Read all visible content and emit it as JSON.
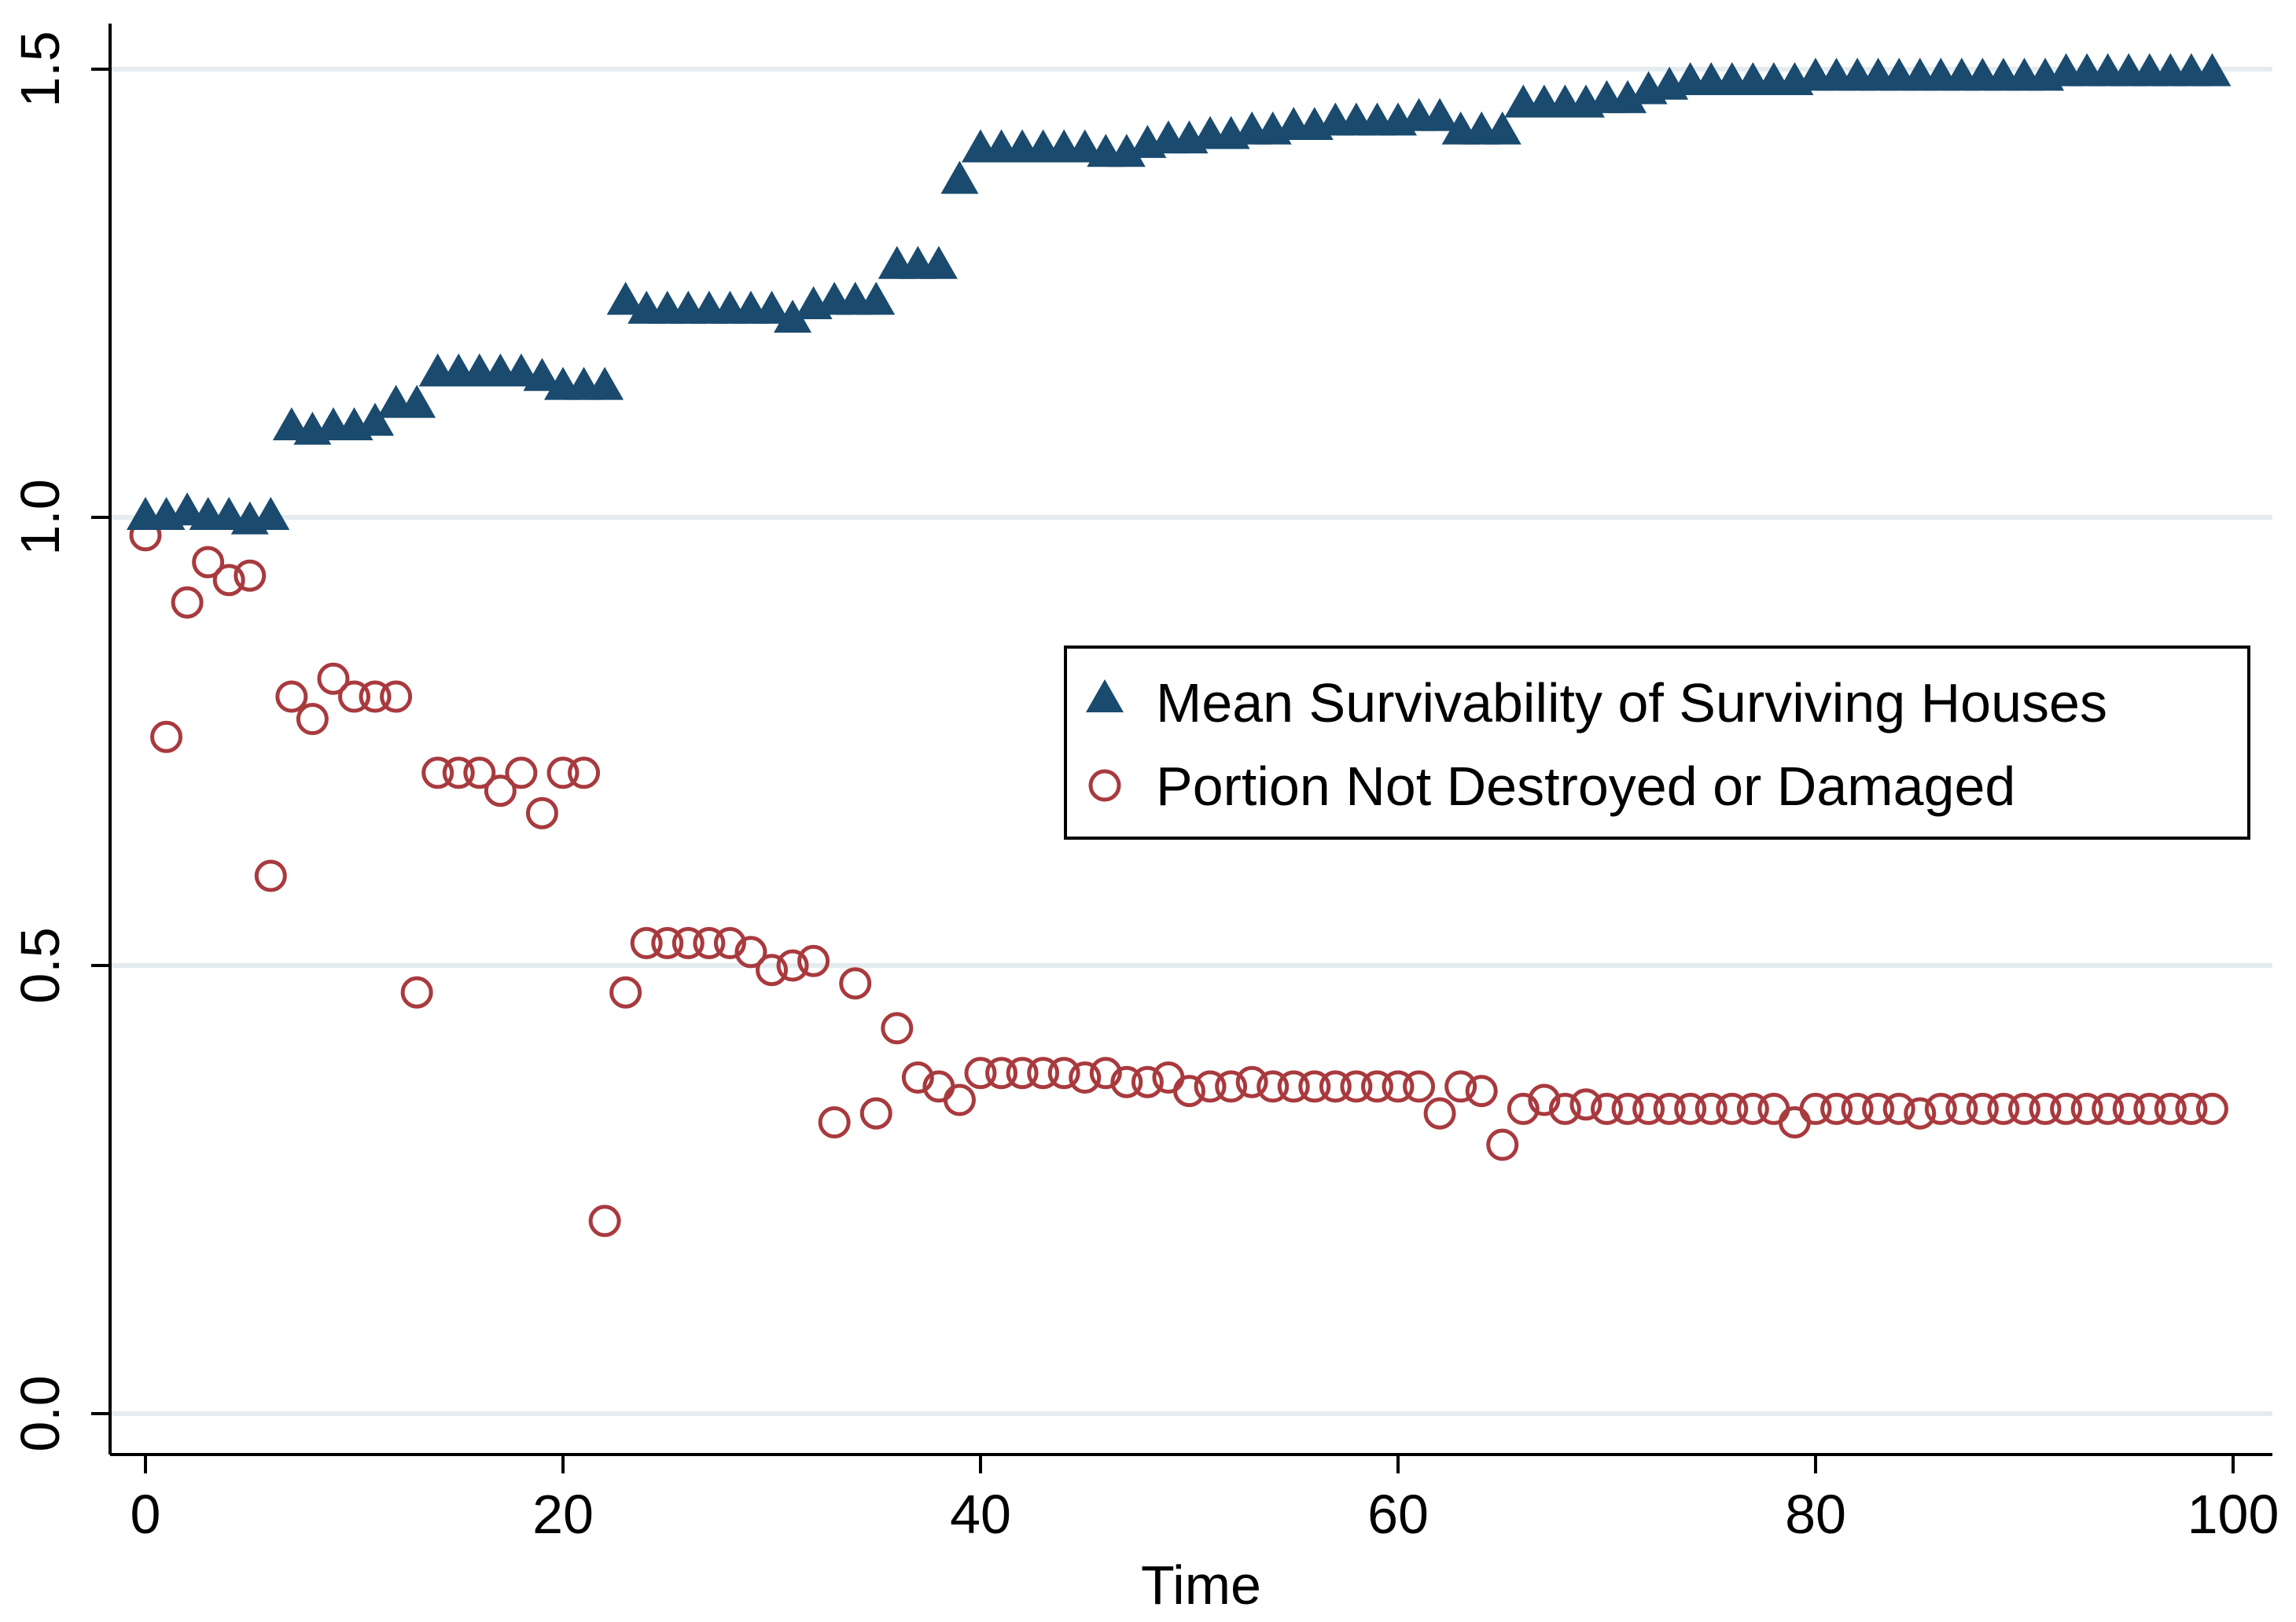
{
  "chart_data": {
    "type": "scatter",
    "xlabel": "Time",
    "ylabel": "",
    "xlim": [
      0,
      100
    ],
    "ylim": [
      0,
      1.5
    ],
    "x_ticks": [
      0,
      20,
      40,
      60,
      80,
      100
    ],
    "y_ticks": [
      0,
      0.5,
      1,
      1.5
    ],
    "x_tick_labels": [
      "0",
      "20",
      "40",
      "60",
      "80",
      "100"
    ],
    "y_tick_labels": [
      "0.0",
      "0.5",
      "1.0",
      "1.5"
    ],
    "grid": "horizontal",
    "legend_position": "right",
    "colors": {
      "triangle": "#1a4a6e",
      "circle": "#a83a3e",
      "grid": "#e4ecf0",
      "axis": "#000000"
    },
    "series": [
      {
        "name": "Mean Survivability of Surviving Houses",
        "marker": "triangle",
        "x": [
          0,
          1,
          2,
          3,
          4,
          5,
          6,
          7,
          8,
          9,
          10,
          11,
          12,
          13,
          14,
          15,
          16,
          17,
          18,
          19,
          20,
          21,
          22,
          23,
          24,
          25,
          26,
          27,
          28,
          29,
          30,
          31,
          32,
          33,
          34,
          35,
          36,
          37,
          38,
          39,
          40,
          41,
          42,
          43,
          44,
          45,
          46,
          47,
          48,
          49,
          50,
          51,
          52,
          53,
          54,
          55,
          56,
          57,
          58,
          59,
          60,
          61,
          62,
          63,
          64,
          65,
          66,
          67,
          68,
          69,
          70,
          71,
          72,
          73,
          74,
          75,
          76,
          77,
          78,
          79,
          80,
          81,
          82,
          83,
          84,
          85,
          86,
          87,
          88,
          89,
          90,
          91,
          92,
          93,
          94,
          95,
          96,
          97,
          98,
          99
        ],
        "y": [
          1.0,
          1.0,
          1.005,
          1.0,
          1.0,
          0.995,
          1.0,
          1.1,
          1.095,
          1.1,
          1.1,
          1.105,
          1.125,
          1.125,
          1.16,
          1.16,
          1.16,
          1.16,
          1.16,
          1.155,
          1.145,
          1.145,
          1.145,
          1.24,
          1.23,
          1.23,
          1.23,
          1.23,
          1.23,
          1.23,
          1.23,
          1.22,
          1.235,
          1.24,
          1.24,
          1.24,
          1.28,
          1.28,
          1.28,
          1.375,
          1.41,
          1.41,
          1.41,
          1.41,
          1.41,
          1.41,
          1.405,
          1.405,
          1.415,
          1.42,
          1.42,
          1.425,
          1.425,
          1.43,
          1.43,
          1.435,
          1.435,
          1.44,
          1.44,
          1.44,
          1.44,
          1.445,
          1.445,
          1.43,
          1.43,
          1.43,
          1.46,
          1.46,
          1.46,
          1.46,
          1.465,
          1.465,
          1.475,
          1.48,
          1.485,
          1.485,
          1.485,
          1.485,
          1.485,
          1.485,
          1.49,
          1.49,
          1.49,
          1.49,
          1.49,
          1.49,
          1.49,
          1.49,
          1.49,
          1.49,
          1.49,
          1.49,
          1.495,
          1.495,
          1.495,
          1.495,
          1.495,
          1.495,
          1.495,
          1.495
        ]
      },
      {
        "name": "Portion Not Destroyed or Damaged",
        "marker": "circle",
        "x": [
          0,
          1,
          2,
          3,
          4,
          5,
          6,
          7,
          8,
          9,
          10,
          11,
          12,
          13,
          14,
          15,
          16,
          17,
          18,
          19,
          20,
          21,
          22,
          23,
          24,
          25,
          26,
          27,
          28,
          29,
          30,
          31,
          32,
          33,
          34,
          35,
          36,
          37,
          38,
          39,
          40,
          41,
          42,
          43,
          44,
          45,
          46,
          47,
          48,
          49,
          50,
          51,
          52,
          53,
          54,
          55,
          56,
          57,
          58,
          59,
          60,
          61,
          62,
          63,
          64,
          65,
          66,
          67,
          68,
          69,
          70,
          71,
          72,
          73,
          74,
          75,
          76,
          77,
          78,
          79,
          80,
          81,
          82,
          83,
          84,
          85,
          86,
          87,
          88,
          89,
          90,
          91,
          92,
          93,
          94,
          95,
          96,
          97,
          98,
          99
        ],
        "y": [
          0.98,
          0.755,
          0.905,
          0.95,
          0.93,
          0.935,
          0.6,
          0.8,
          0.775,
          0.82,
          0.8,
          0.8,
          0.8,
          0.47,
          0.715,
          0.715,
          0.715,
          0.695,
          0.715,
          0.67,
          0.715,
          0.715,
          0.215,
          0.47,
          0.525,
          0.525,
          0.525,
          0.525,
          0.525,
          0.515,
          0.495,
          0.5,
          0.505,
          0.325,
          0.48,
          0.335,
          0.43,
          0.375,
          0.365,
          0.35,
          0.38,
          0.38,
          0.38,
          0.38,
          0.38,
          0.375,
          0.38,
          0.37,
          0.37,
          0.375,
          0.36,
          0.365,
          0.365,
          0.37,
          0.365,
          0.365,
          0.365,
          0.365,
          0.365,
          0.365,
          0.365,
          0.365,
          0.335,
          0.365,
          0.36,
          0.3,
          0.34,
          0.35,
          0.34,
          0.345,
          0.34,
          0.34,
          0.34,
          0.34,
          0.34,
          0.34,
          0.34,
          0.34,
          0.34,
          0.325,
          0.34,
          0.34,
          0.34,
          0.34,
          0.34,
          0.335,
          0.34,
          0.34,
          0.34,
          0.34,
          0.34,
          0.34,
          0.34,
          0.34,
          0.34,
          0.34,
          0.34,
          0.34,
          0.34,
          0.34
        ]
      }
    ]
  }
}
